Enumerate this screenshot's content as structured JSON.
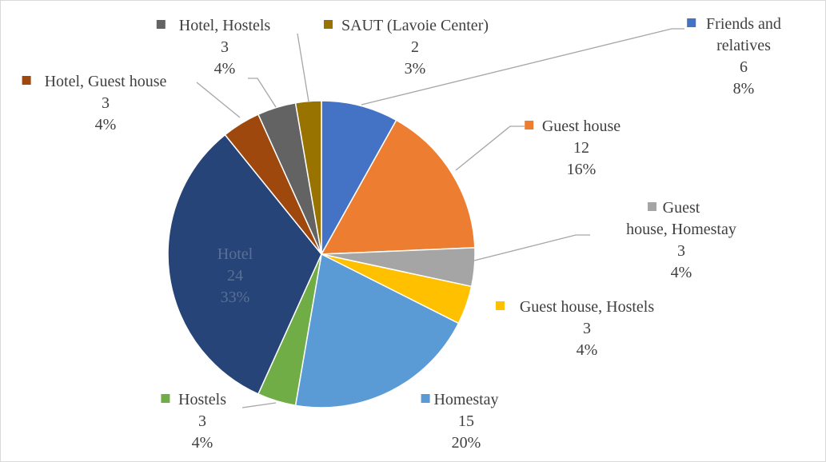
{
  "chart_data": {
    "type": "pie",
    "title": "",
    "start_angle_deg": 0,
    "direction": "clockwise",
    "slices": [
      {
        "label": "Friends and relatives",
        "label_lines": [
          "Friends and",
          "relatives"
        ],
        "value": 6,
        "percent": "8%",
        "color": "#4472C4"
      },
      {
        "label": "Guest house",
        "label_lines": [
          "Guest house"
        ],
        "value": 12,
        "percent": "16%",
        "color": "#ED7D31"
      },
      {
        "label": "Guest house, Homestay",
        "label_lines": [
          "Guest",
          "house, Homestay"
        ],
        "value": 3,
        "percent": "4%",
        "color": "#A5A5A5"
      },
      {
        "label": "Guest house, Hostels",
        "label_lines": [
          "Guest house, Hostels"
        ],
        "value": 3,
        "percent": "4%",
        "color": "#FFC000"
      },
      {
        "label": "Homestay",
        "label_lines": [
          "Homestay"
        ],
        "value": 15,
        "percent": "20%",
        "color": "#5B9BD5"
      },
      {
        "label": "Hostels",
        "label_lines": [
          "Hostels"
        ],
        "value": 3,
        "percent": "4%",
        "color": "#70AD47"
      },
      {
        "label": "Hotel",
        "label_lines": [
          "Hotel"
        ],
        "value": 24,
        "percent": "33%",
        "color": "#264478"
      },
      {
        "label": "Hotel, Guest house",
        "label_lines": [
          "Hotel, Guest house"
        ],
        "value": 3,
        "percent": "4%",
        "color": "#9E480E"
      },
      {
        "label": "Hotel, Hostels",
        "label_lines": [
          "Hotel, Hostels"
        ],
        "value": 3,
        "percent": "4%",
        "color": "#636363"
      },
      {
        "label": "SAUT (Lavoie Center)",
        "label_lines": [
          "SAUT (Lavoie Center)"
        ],
        "value": 2,
        "percent": "3%",
        "color": "#997300"
      }
    ]
  }
}
